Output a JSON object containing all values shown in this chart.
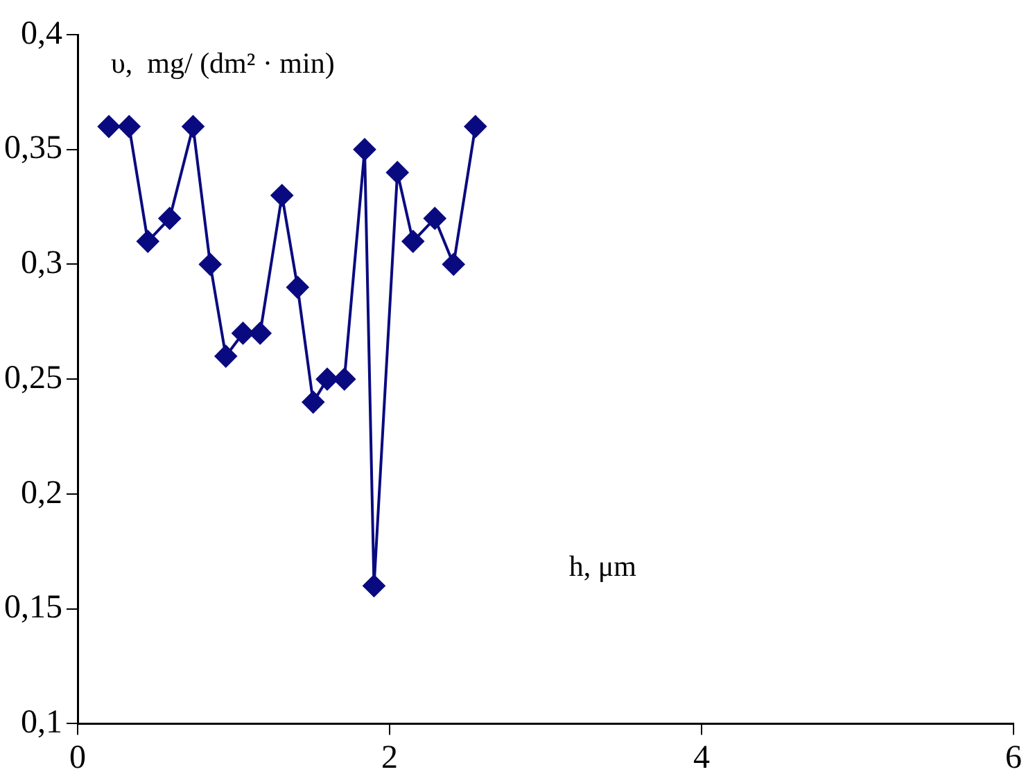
{
  "chart_data": {
    "type": "line",
    "ylabel": "υ,  mg/ (dm² · min)",
    "xlabel": "h, μm",
    "x": [
      0.2,
      0.33,
      0.45,
      0.59,
      0.74,
      0.85,
      0.95,
      1.06,
      1.17,
      1.31,
      1.41,
      1.51,
      1.6,
      1.71,
      1.84,
      1.9,
      2.05,
      2.15,
      2.29,
      2.41,
      2.55
    ],
    "series": [
      {
        "color": "#0a0a80",
        "values": [
          0.36,
          0.36,
          0.31,
          0.32,
          0.36,
          0.3,
          0.26,
          0.27,
          0.27,
          0.33,
          0.29,
          0.24,
          0.25,
          0.25,
          0.35,
          0.16,
          0.34,
          0.31,
          0.32,
          0.3,
          0.36
        ]
      }
    ],
    "xlim": [
      0,
      6
    ],
    "xticks": [
      0,
      2,
      4,
      6
    ],
    "ylim": [
      0.1,
      0.4
    ],
    "yticks": [
      {
        "value": 0.1,
        "label": "0,1"
      },
      {
        "value": 0.15,
        "label": "0,15"
      },
      {
        "value": 0.2,
        "label": "0,2"
      },
      {
        "value": 0.25,
        "label": "0,25"
      },
      {
        "value": 0.3,
        "label": "0,3"
      },
      {
        "value": 0.35,
        "label": "0,35"
      },
      {
        "value": 0.4,
        "label": "0,4"
      }
    ],
    "grid": false,
    "legend": false,
    "marker": "diamond",
    "line_style": "solid"
  }
}
